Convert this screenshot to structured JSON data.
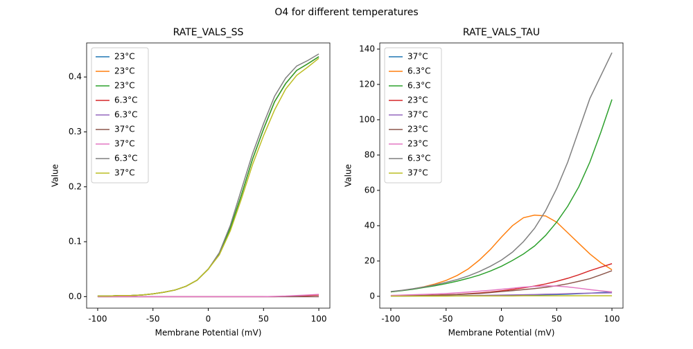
{
  "title": "O4 for different temperatures",
  "chart_data": [
    {
      "type": "line",
      "title": "RATE_VALS_SS",
      "xlabel": "Membrane Potential (mV)",
      "ylabel": "Value",
      "x": [
        -100,
        -90,
        -80,
        -70,
        -60,
        -50,
        -40,
        -30,
        -20,
        -10,
        0,
        10,
        20,
        30,
        40,
        50,
        60,
        70,
        80,
        90,
        100
      ],
      "xlim": [
        -110,
        110
      ],
      "xticks": [
        -100,
        -50,
        0,
        50,
        100
      ],
      "ylim": [
        -0.021,
        0.462
      ],
      "yticks": [
        {
          "value": 0,
          "label": "0.0"
        },
        0.1,
        0.2,
        0.3,
        0.4
      ],
      "legend": "upper left",
      "series": [
        {
          "name": "23°C",
          "color": "#1f77b4",
          "values": [
            0.001,
            0.001,
            0.002,
            0.002,
            0.003,
            0.005,
            0.008,
            0.012,
            0.019,
            0.03,
            0.05,
            0.078,
            0.125,
            0.185,
            0.25,
            0.305,
            0.355,
            0.388,
            0.412,
            0.424,
            0.437
          ]
        },
        {
          "name": "23°C",
          "color": "#ff7f0e",
          "values": [
            0.001,
            0.001,
            0.002,
            0.002,
            0.003,
            0.005,
            0.008,
            0.012,
            0.019,
            0.03,
            0.05,
            0.078,
            0.125,
            0.185,
            0.25,
            0.305,
            0.355,
            0.388,
            0.412,
            0.424,
            0.437
          ]
        },
        {
          "name": "23°C",
          "color": "#2ca02c",
          "values": [
            0.001,
            0.001,
            0.002,
            0.002,
            0.003,
            0.005,
            0.008,
            0.012,
            0.019,
            0.03,
            0.05,
            0.078,
            0.125,
            0.185,
            0.25,
            0.305,
            0.355,
            0.388,
            0.412,
            0.424,
            0.437
          ]
        },
        {
          "name": "6.3°C",
          "color": "#d62728",
          "values": [
            0,
            0,
            0,
            0,
            0,
            0,
            0,
            0,
            0,
            0,
            0,
            0,
            0,
            0,
            0,
            0,
            0,
            0.0005,
            0.001,
            0.002,
            0.003
          ]
        },
        {
          "name": "6.3°C",
          "color": "#9467bd",
          "values": [
            0,
            0,
            0,
            0,
            0,
            0,
            0,
            0,
            0,
            0,
            0,
            0,
            0,
            0,
            0,
            0,
            0,
            0,
            0,
            0,
            0
          ]
        },
        {
          "name": "37°C",
          "color": "#8c564b",
          "values": [
            0,
            0,
            0,
            0,
            0,
            0,
            0,
            0,
            0,
            0,
            0,
            0,
            0,
            0,
            0,
            0,
            0,
            0,
            0,
            0,
            0
          ]
        },
        {
          "name": "37°C",
          "color": "#e377c2",
          "values": [
            0,
            0,
            0,
            0,
            0,
            0,
            0,
            0,
            0,
            0,
            0,
            0,
            0,
            0,
            0,
            0,
            0.0005,
            0.001,
            0.002,
            0.003,
            0.004
          ]
        },
        {
          "name": "6.3°C",
          "color": "#7f7f7f",
          "values": [
            0.001,
            0.001,
            0.002,
            0.002,
            0.003,
            0.005,
            0.008,
            0.012,
            0.019,
            0.03,
            0.05,
            0.08,
            0.13,
            0.195,
            0.26,
            0.315,
            0.365,
            0.398,
            0.42,
            0.43,
            0.442
          ]
        },
        {
          "name": "37°C",
          "color": "#bcbd22",
          "values": [
            0.001,
            0.001,
            0.002,
            0.002,
            0.003,
            0.005,
            0.008,
            0.012,
            0.019,
            0.03,
            0.05,
            0.076,
            0.12,
            0.178,
            0.24,
            0.293,
            0.34,
            0.378,
            0.403,
            0.418,
            0.434
          ]
        }
      ]
    },
    {
      "type": "line",
      "title": "RATE_VALS_TAU",
      "xlabel": "Membrane Potential (mV)",
      "ylabel": "Value",
      "x": [
        -100,
        -90,
        -80,
        -70,
        -60,
        -50,
        -40,
        -30,
        -20,
        -10,
        0,
        10,
        20,
        30,
        40,
        50,
        60,
        70,
        80,
        90,
        100
      ],
      "xlim": [
        -110,
        110
      ],
      "xticks": [
        -100,
        -50,
        0,
        50,
        100
      ],
      "ylim": [
        -6.7,
        143.5
      ],
      "yticks": [
        0,
        20,
        40,
        60,
        80,
        100,
        120,
        140
      ],
      "legend": "upper left",
      "series": [
        {
          "name": "37°C",
          "color": "#1f77b4",
          "values": [
            0.2,
            0.2,
            0.2,
            0.3,
            0.3,
            0.3,
            0.3,
            0.4,
            0.4,
            0.4,
            0.5,
            0.6,
            0.7,
            0.8,
            0.9,
            1.0,
            1.2,
            1.5,
            1.8,
            2.1,
            2.5
          ]
        },
        {
          "name": "6.3°C",
          "color": "#ff7f0e",
          "values": [
            2.5,
            3.3,
            4.2,
            5.4,
            7,
            9,
            11.8,
            15.5,
            20.5,
            26.5,
            33.5,
            40,
            44.5,
            46,
            45.5,
            42,
            36,
            30,
            24,
            19,
            15
          ]
        },
        {
          "name": "6.3°C",
          "color": "#2ca02c",
          "values": [
            2.5,
            3.2,
            4,
            5,
            6,
            7.2,
            8.6,
            10.2,
            12,
            14.3,
            17,
            20.3,
            24,
            28.5,
            34.5,
            42,
            51,
            62,
            76,
            93,
            111.5
          ]
        },
        {
          "name": "23°C",
          "color": "#d62728",
          "values": [
            0.2,
            0.3,
            0.4,
            0.5,
            0.7,
            0.9,
            1.1,
            1.5,
            1.9,
            2.4,
            3.1,
            3.9,
            4.8,
            5.8,
            7,
            8.5,
            10.2,
            12.2,
            14.5,
            16.5,
            18.5
          ]
        },
        {
          "name": "37°C",
          "color": "#9467bd",
          "values": [
            0.1,
            0.1,
            0.2,
            0.2,
            0.2,
            0.3,
            0.3,
            0.4,
            0.5,
            0.6,
            0.7,
            0.8,
            0.9,
            1.0,
            1.2,
            1.3,
            1.5,
            1.7,
            1.8,
            1.9,
            2.0
          ]
        },
        {
          "name": "23°C",
          "color": "#8c564b",
          "values": [
            0.2,
            0.3,
            0.4,
            0.5,
            0.6,
            0.8,
            1,
            1.3,
            1.6,
            2.1,
            2.7,
            3.2,
            3.8,
            4.4,
            5.1,
            6,
            7.1,
            8.5,
            10,
            12.2,
            14.5
          ]
        },
        {
          "name": "23°C",
          "color": "#e377c2",
          "values": [
            0.5,
            0.7,
            0.9,
            1.1,
            1.3,
            1.6,
            2,
            2.4,
            2.9,
            3.4,
            4,
            4.6,
            5.2,
            5.6,
            5.9,
            5.8,
            5.3,
            4.6,
            3.8,
            3.1,
            2.5
          ]
        },
        {
          "name": "6.3°C",
          "color": "#7f7f7f",
          "values": [
            2.7,
            3.4,
            4.3,
            5.3,
            6.5,
            7.9,
            9.5,
            11.5,
            14,
            17,
            20.5,
            25,
            31,
            38.5,
            48.5,
            61,
            76,
            94,
            112,
            125,
            138
          ]
        },
        {
          "name": "37°C",
          "color": "#bcbd22",
          "values": [
            0.1,
            0.1,
            0.1,
            0.1,
            0.1,
            0.1,
            0.2,
            0.2,
            0.2,
            0.2,
            0.2,
            0.2,
            0.3,
            0.3,
            0.3,
            0.3,
            0.3,
            0.3,
            0.3,
            0.3,
            0.3
          ]
        }
      ]
    }
  ]
}
